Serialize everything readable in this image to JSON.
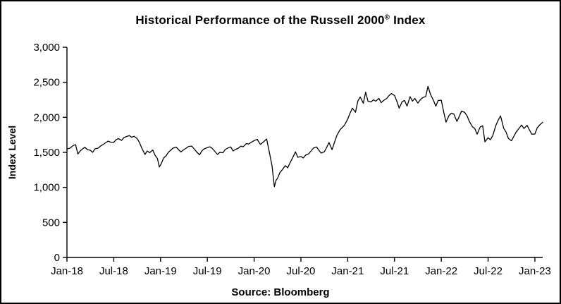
{
  "title": {
    "part1": "Historical Performance of the Russell 2000",
    "registered": "®",
    "part2": " Index"
  },
  "source": "Source: Bloomberg",
  "chart_data": {
    "type": "line",
    "title": "Historical Performance of the Russell 2000® Index",
    "xlabel": "",
    "ylabel": "Index Level",
    "source_note": "Source: Bloomberg",
    "grid": false,
    "legend": "none",
    "line_color": "#000000",
    "ylim": [
      0,
      3000
    ],
    "xlim": [
      0,
      61
    ],
    "x_unit": "months since Jan-2018",
    "y_ticks": [
      {
        "value": 0,
        "label": "0"
      },
      {
        "value": 500,
        "label": "500"
      },
      {
        "value": 1000,
        "label": "1,000"
      },
      {
        "value": 1500,
        "label": "1,500"
      },
      {
        "value": 2000,
        "label": "2,000"
      },
      {
        "value": 2500,
        "label": "2,500"
      },
      {
        "value": 3000,
        "label": "3,000"
      }
    ],
    "x_ticks": [
      {
        "month": 0,
        "label": "Jan-18"
      },
      {
        "month": 6,
        "label": "Jul-18"
      },
      {
        "month": 12,
        "label": "Jan-19"
      },
      {
        "month": 18,
        "label": "Jul-19"
      },
      {
        "month": 24,
        "label": "Jan-20"
      },
      {
        "month": 30,
        "label": "Jul-20"
      },
      {
        "month": 36,
        "label": "Jan-21"
      },
      {
        "month": 42,
        "label": "Jul-21"
      },
      {
        "month": 48,
        "label": "Jan-22"
      },
      {
        "month": 54,
        "label": "Jul-22"
      },
      {
        "month": 60,
        "label": "Jan-23"
      }
    ],
    "series": [
      {
        "name": "Russell 2000 Index Level",
        "points": [
          [
            0.0,
            1548
          ],
          [
            0.4,
            1560
          ],
          [
            0.8,
            1598
          ],
          [
            1.1,
            1610
          ],
          [
            1.4,
            1477
          ],
          [
            1.7,
            1520
          ],
          [
            2.0,
            1549
          ],
          [
            2.3,
            1572
          ],
          [
            2.6,
            1540
          ],
          [
            3.0,
            1529
          ],
          [
            3.3,
            1500
          ],
          [
            3.6,
            1550
          ],
          [
            4.0,
            1560
          ],
          [
            4.3,
            1590
          ],
          [
            4.6,
            1610
          ],
          [
            5.0,
            1640
          ],
          [
            5.3,
            1660
          ],
          [
            5.6,
            1645
          ],
          [
            6.0,
            1643
          ],
          [
            6.3,
            1680
          ],
          [
            6.6,
            1696
          ],
          [
            7.0,
            1670
          ],
          [
            7.3,
            1710
          ],
          [
            7.6,
            1725
          ],
          [
            8.0,
            1740
          ],
          [
            8.3,
            1715
          ],
          [
            8.6,
            1730
          ],
          [
            9.0,
            1697
          ],
          [
            9.3,
            1640
          ],
          [
            9.6,
            1560
          ],
          [
            10.0,
            1470
          ],
          [
            10.3,
            1520
          ],
          [
            10.6,
            1495
          ],
          [
            11.0,
            1533
          ],
          [
            11.3,
            1460
          ],
          [
            11.6,
            1410
          ],
          [
            11.85,
            1292
          ],
          [
            12.1,
            1340
          ],
          [
            12.4,
            1420
          ],
          [
            12.7,
            1450
          ],
          [
            13.0,
            1500
          ],
          [
            13.3,
            1530
          ],
          [
            13.6,
            1560
          ],
          [
            14.0,
            1575
          ],
          [
            14.3,
            1540
          ],
          [
            14.6,
            1505
          ],
          [
            15.0,
            1540
          ],
          [
            15.3,
            1560
          ],
          [
            15.6,
            1585
          ],
          [
            16.0,
            1590
          ],
          [
            16.3,
            1550
          ],
          [
            16.6,
            1510
          ],
          [
            17.0,
            1465
          ],
          [
            17.3,
            1520
          ],
          [
            17.6,
            1550
          ],
          [
            18.0,
            1567
          ],
          [
            18.3,
            1580
          ],
          [
            18.6,
            1560
          ],
          [
            19.0,
            1510
          ],
          [
            19.3,
            1470
          ],
          [
            19.6,
            1500
          ],
          [
            20.0,
            1495
          ],
          [
            20.3,
            1540
          ],
          [
            20.6,
            1560
          ],
          [
            21.0,
            1578
          ],
          [
            21.3,
            1520
          ],
          [
            21.6,
            1540
          ],
          [
            22.0,
            1560
          ],
          [
            22.3,
            1590
          ],
          [
            22.6,
            1580
          ],
          [
            23.0,
            1625
          ],
          [
            23.3,
            1620
          ],
          [
            23.6,
            1640
          ],
          [
            24.0,
            1668
          ],
          [
            24.4,
            1685
          ],
          [
            24.8,
            1614
          ],
          [
            25.2,
            1650
          ],
          [
            25.6,
            1690
          ],
          [
            26.0,
            1476
          ],
          [
            26.3,
            1307
          ],
          [
            26.6,
            1010
          ],
          [
            26.8,
            1100
          ],
          [
            27.0,
            1131
          ],
          [
            27.3,
            1210
          ],
          [
            27.6,
            1250
          ],
          [
            28.0,
            1310
          ],
          [
            28.3,
            1280
          ],
          [
            28.6,
            1350
          ],
          [
            29.0,
            1437
          ],
          [
            29.3,
            1507
          ],
          [
            29.6,
            1430
          ],
          [
            30.0,
            1441
          ],
          [
            30.3,
            1420
          ],
          [
            30.6,
            1460
          ],
          [
            31.0,
            1480
          ],
          [
            31.3,
            1520
          ],
          [
            31.6,
            1560
          ],
          [
            32.0,
            1578
          ],
          [
            32.3,
            1530
          ],
          [
            32.6,
            1490
          ],
          [
            33.0,
            1508
          ],
          [
            33.3,
            1570
          ],
          [
            33.6,
            1640
          ],
          [
            34.0,
            1538
          ],
          [
            34.3,
            1640
          ],
          [
            34.6,
            1740
          ],
          [
            35.0,
            1820
          ],
          [
            35.3,
            1855
          ],
          [
            35.6,
            1890
          ],
          [
            36.0,
            1975
          ],
          [
            36.3,
            2060
          ],
          [
            36.6,
            2130
          ],
          [
            37.0,
            2073
          ],
          [
            37.3,
            2230
          ],
          [
            37.6,
            2290
          ],
          [
            38.0,
            2201
          ],
          [
            38.3,
            2360
          ],
          [
            38.6,
            2230
          ],
          [
            39.0,
            2221
          ],
          [
            39.3,
            2250
          ],
          [
            39.6,
            2230
          ],
          [
            40.0,
            2270
          ],
          [
            40.3,
            2210
          ],
          [
            40.6,
            2240
          ],
          [
            41.0,
            2270
          ],
          [
            41.3,
            2310
          ],
          [
            41.6,
            2340
          ],
          [
            42.0,
            2311
          ],
          [
            42.3,
            2230
          ],
          [
            42.6,
            2130
          ],
          [
            43.0,
            2226
          ],
          [
            43.3,
            2240
          ],
          [
            43.6,
            2160
          ],
          [
            44.0,
            2295
          ],
          [
            44.3,
            2230
          ],
          [
            44.6,
            2270
          ],
          [
            45.0,
            2204
          ],
          [
            45.3,
            2250
          ],
          [
            45.6,
            2280
          ],
          [
            46.0,
            2297
          ],
          [
            46.3,
            2442
          ],
          [
            46.6,
            2330
          ],
          [
            47.0,
            2240
          ],
          [
            47.3,
            2159
          ],
          [
            47.6,
            2240
          ],
          [
            48.0,
            2245
          ],
          [
            48.3,
            2080
          ],
          [
            48.6,
            1931
          ],
          [
            49.0,
            2028
          ],
          [
            49.3,
            2060
          ],
          [
            49.6,
            2048
          ],
          [
            50.0,
            1942
          ],
          [
            50.3,
            2010
          ],
          [
            50.6,
            2090
          ],
          [
            51.0,
            2070
          ],
          [
            51.3,
            2020
          ],
          [
            51.6,
            1940
          ],
          [
            52.0,
            1864
          ],
          [
            52.3,
            1840
          ],
          [
            52.6,
            1760
          ],
          [
            53.0,
            1864
          ],
          [
            53.3,
            1880
          ],
          [
            53.6,
            1650
          ],
          [
            54.0,
            1708
          ],
          [
            54.3,
            1680
          ],
          [
            54.6,
            1740
          ],
          [
            55.0,
            1885
          ],
          [
            55.3,
            1960
          ],
          [
            55.6,
            2020
          ],
          [
            56.0,
            1844
          ],
          [
            56.3,
            1790
          ],
          [
            56.6,
            1700
          ],
          [
            57.0,
            1665
          ],
          [
            57.3,
            1730
          ],
          [
            57.6,
            1790
          ],
          [
            58.0,
            1847
          ],
          [
            58.3,
            1890
          ],
          [
            58.6,
            1840
          ],
          [
            59.0,
            1886
          ],
          [
            59.3,
            1820
          ],
          [
            59.6,
            1760
          ],
          [
            60.0,
            1761
          ],
          [
            60.3,
            1850
          ],
          [
            60.6,
            1890
          ],
          [
            61.0,
            1930
          ]
        ]
      }
    ]
  }
}
